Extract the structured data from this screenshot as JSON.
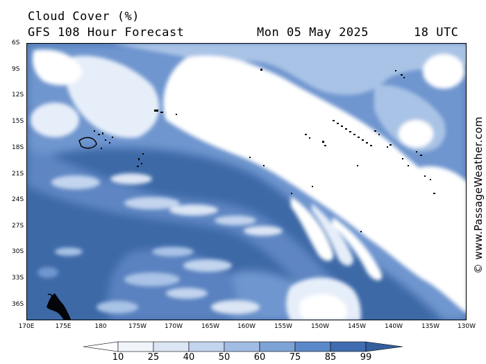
{
  "header": {
    "title": "Cloud Cover (%)",
    "subtitle": "GFS 108 Hour Forecast",
    "date": "Mon 05 May 2025",
    "time": "18 UTC"
  },
  "credit": "© www.PassageWeather.com",
  "lat_labels": [
    "6S",
    "9S",
    "12S",
    "15S",
    "18S",
    "21S",
    "24S",
    "27S",
    "30S",
    "33S",
    "36S"
  ],
  "lon_labels": [
    "170E",
    "175E",
    "180",
    "175W",
    "170W",
    "165W",
    "160W",
    "155W",
    "150W",
    "145W",
    "140W",
    "135W",
    "130W"
  ],
  "colorbar": {
    "levels": [
      "10",
      "25",
      "40",
      "50",
      "60",
      "75",
      "85",
      "99"
    ],
    "colors": [
      "#ffffff",
      "#f0f4fb",
      "#dbe5f4",
      "#c2d4ee",
      "#a2bde3",
      "#7ea3d6",
      "#5b88c8",
      "#3f6db0",
      "#355f9c"
    ]
  },
  "palette": {
    "clear": "#3d69a7",
    "thin": "#6f96cf",
    "mid": "#a9c3e6",
    "thick": "#ffffff",
    "land": "#000000"
  }
}
